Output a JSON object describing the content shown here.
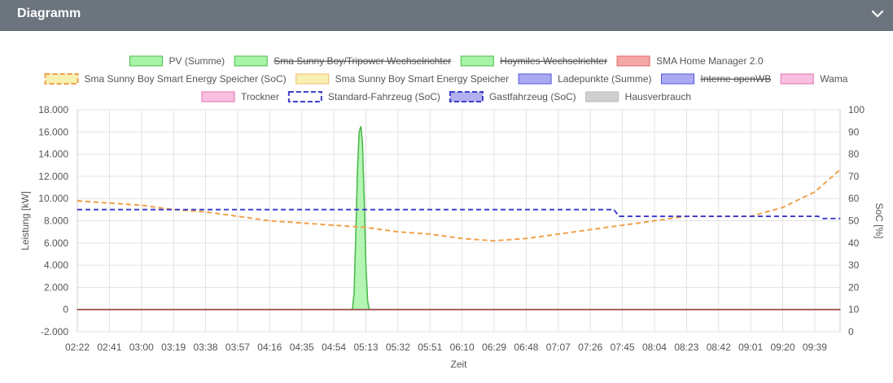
{
  "header": {
    "title": "Diagramm"
  },
  "legend": [
    {
      "label": "PV (Summe)",
      "fill": "#a7f3a7",
      "stroke": "#4cbb4c",
      "dashed": false,
      "hidden": false
    },
    {
      "label": "Sma Sunny Boy/Tripower Wechselrichter",
      "fill": "#a7f3a7",
      "stroke": "#4cbb4c",
      "dashed": false,
      "hidden": true
    },
    {
      "label": "Hoymiles Wechselrichter",
      "fill": "#a7f3a7",
      "stroke": "#4cbb4c",
      "dashed": false,
      "hidden": true
    },
    {
      "label": "SMA Home Manager 2.0",
      "fill": "#f4a8a8",
      "stroke": "#e06666",
      "dashed": false,
      "hidden": false
    },
    {
      "label": "Sma Sunny Boy Smart Energy Speicher (SoC)",
      "fill": "#f7f0b0",
      "stroke": "#f0a04b",
      "dashed": true,
      "hidden": false
    },
    {
      "label": "Sma Sunny Boy Smart Energy Speicher",
      "fill": "#f7f0b0",
      "stroke": "#f0c070",
      "dashed": false,
      "hidden": false
    },
    {
      "label": "Ladepunkte (Summe)",
      "fill": "#aaaaf2",
      "stroke": "#5555dd",
      "dashed": false,
      "hidden": false
    },
    {
      "label": "Interne openWB",
      "fill": "#aaaaf2",
      "stroke": "#5555dd",
      "dashed": false,
      "hidden": true
    },
    {
      "label": "Wama",
      "fill": "#f8bfe0",
      "stroke": "#e070b0",
      "dashed": false,
      "hidden": false
    },
    {
      "label": "Trockner",
      "fill": "#f8bfe0",
      "stroke": "#e070b0",
      "dashed": false,
      "hidden": false
    },
    {
      "label": "Standard-Fahrzeug (SoC)",
      "fill": "#ffffff",
      "stroke": "#4040cc",
      "dashed": true,
      "hidden": false
    },
    {
      "label": "Gastfahrzeug (SoC)",
      "fill": "#b0b0f0",
      "stroke": "#4040cc",
      "dashed": true,
      "hidden": false
    },
    {
      "label": "Hausverbrauch",
      "fill": "#d0d0d0",
      "stroke": "#bbbbbb",
      "dashed": false,
      "hidden": false
    }
  ],
  "chart_data": {
    "type": "line",
    "xlabel": "Zeit",
    "ylabel": "Leistung [kW]",
    "y2label": "SoC [%]",
    "ylim": [
      -2000,
      18000
    ],
    "y2lim": [
      0,
      100
    ],
    "yticks": [
      18000,
      16000,
      14000,
      12000,
      10000,
      8000,
      6000,
      4000,
      2000,
      0,
      -2000
    ],
    "yticklabels": [
      "18.000",
      "16.000",
      "14.000",
      "12.000",
      "10.000",
      "8.000",
      "6.000",
      "4.000",
      "2.000",
      "0",
      "-2.000"
    ],
    "y2ticks": [
      100,
      90,
      80,
      70,
      60,
      50,
      40,
      30,
      20,
      10,
      0
    ],
    "xticks": [
      "02:22",
      "02:41",
      "03:00",
      "03:19",
      "03:38",
      "03:57",
      "04:16",
      "04:35",
      "04:54",
      "05:13",
      "05:32",
      "05:51",
      "06:10",
      "06:29",
      "06:48",
      "07:07",
      "07:26",
      "07:45",
      "08:04",
      "08:23",
      "08:42",
      "09:01",
      "09:20",
      "09:39"
    ],
    "xrange": [
      "02:22",
      "09:54"
    ],
    "grid": true,
    "legend_position": "top",
    "series": [
      {
        "name": "PV (Summe)",
        "axis": "left",
        "color": "#4cbb4c",
        "fill": "#a7f3a7",
        "x": [
          "02:22",
          "05:05",
          "05:06",
          "05:07",
          "05:08",
          "05:09",
          "05:10",
          "05:11",
          "05:12",
          "05:13",
          "05:14",
          "05:15",
          "09:54"
        ],
        "values": [
          0,
          0,
          1500,
          6500,
          12500,
          16000,
          16500,
          15000,
          10000,
          4000,
          800,
          0,
          0
        ]
      },
      {
        "name": "SMA Home Manager 2.0",
        "axis": "left",
        "color": "#9b4040",
        "x": [
          "02:22",
          "09:54"
        ],
        "values": [
          0,
          0
        ]
      },
      {
        "name": "Sma Sunny Boy Smart Energy Speicher (SoC)",
        "axis": "right",
        "color": "#f0a04b",
        "dashed": true,
        "x": [
          "02:22",
          "02:41",
          "03:00",
          "03:19",
          "03:38",
          "03:57",
          "04:16",
          "04:35",
          "04:54",
          "05:13",
          "05:32",
          "05:51",
          "06:10",
          "06:29",
          "06:48",
          "07:07",
          "07:26",
          "07:45",
          "08:04",
          "08:23",
          "08:42",
          "09:01",
          "09:20",
          "09:39",
          "09:54"
        ],
        "values": [
          59,
          58,
          57,
          55,
          54,
          52,
          50,
          49,
          48,
          47,
          45,
          44,
          42,
          41,
          42,
          44,
          46,
          48,
          50,
          52,
          52,
          52,
          56,
          63,
          73
        ]
      },
      {
        "name": "Standard-Fahrzeug (SoC)",
        "axis": "right",
        "color": "#4040cc",
        "dashed": true,
        "x": [
          "02:22",
          "07:40",
          "07:43",
          "09:41",
          "09:44",
          "09:54"
        ],
        "values": [
          55,
          55,
          52,
          52,
          51,
          51
        ]
      }
    ]
  }
}
